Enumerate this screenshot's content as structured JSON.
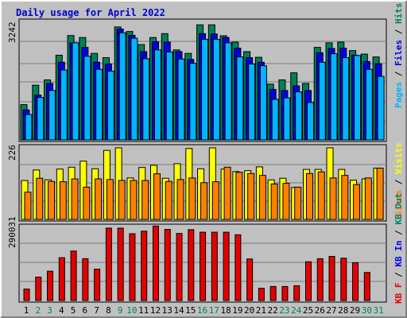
{
  "title": "Daily usage for April 2022",
  "colors": {
    "hits": "#00805a",
    "files": "#0000e6",
    "pages": "#00b4ff",
    "visits": "#ffff00",
    "sites": "#ff8000",
    "kbf": "#e60000",
    "kbin": "#0000ff",
    "kbout": "#00805a",
    "weekday_label": "#000000",
    "weekend_label": "#00805a"
  },
  "chart_data": [
    {
      "type": "bar",
      "title": "Daily usage for April 2022",
      "max_label": "3242",
      "right_label": [
        "Pages",
        "Files",
        "Hits"
      ],
      "ylim": [
        0,
        3242
      ],
      "categories": [
        "1",
        "2",
        "3",
        "4",
        "5",
        "6",
        "7",
        "8",
        "9",
        "10",
        "11",
        "12",
        "13",
        "14",
        "15",
        "16",
        "17",
        "18",
        "19",
        "20",
        "21",
        "22",
        "23",
        "24",
        "25",
        "26",
        "27",
        "28",
        "29",
        "30",
        "31"
      ],
      "series": [
        {
          "name": "Hits",
          "values": [
            1000,
            1550,
            1700,
            2400,
            2955,
            2900,
            2450,
            2330,
            3200,
            3070,
            2700,
            2900,
            3010,
            2550,
            2450,
            3260,
            3260,
            2950,
            2770,
            2500,
            2340,
            1580,
            1700,
            1900,
            1600,
            2620,
            2750,
            2770,
            2530,
            2430,
            2350
          ]
        },
        {
          "name": "Files",
          "values": [
            850,
            1270,
            1600,
            2200,
            2750,
            2620,
            2200,
            2150,
            3140,
            2960,
            2500,
            2780,
            2770,
            2500,
            2280,
            3010,
            3000,
            2900,
            2600,
            2330,
            2200,
            1430,
            1400,
            1530,
            1400,
            2470,
            2590,
            2600,
            2400,
            2220,
            2160
          ]
        },
        {
          "name": "Pages",
          "values": [
            720,
            1200,
            1400,
            1980,
            2750,
            2370,
            2000,
            1950,
            3030,
            2880,
            2300,
            2550,
            2490,
            2290,
            2170,
            2850,
            2850,
            2750,
            2350,
            2150,
            2100,
            1150,
            1190,
            1360,
            1060,
            2200,
            2440,
            2330,
            2390,
            2000,
            1800
          ]
        }
      ]
    },
    {
      "type": "bar",
      "max_label": "226",
      "right_label": [
        "Sites",
        "Visits"
      ],
      "ylim": [
        0,
        226
      ],
      "categories": [
        "1",
        "2",
        "3",
        "4",
        "5",
        "6",
        "7",
        "8",
        "9",
        "10",
        "11",
        "12",
        "13",
        "14",
        "15",
        "16",
        "17",
        "18",
        "19",
        "20",
        "21",
        "22",
        "23",
        "24",
        "25",
        "26",
        "27",
        "28",
        "29",
        "30",
        "31"
      ],
      "series": [
        {
          "name": "Visits",
          "values": [
            123,
            156,
            125,
            159,
            165,
            184,
            160,
            218,
            226,
            131,
            164,
            171,
            130,
            176,
            224,
            160,
            226,
            159,
            151,
            154,
            166,
            125,
            130,
            101,
            158,
            158,
            226,
            158,
            124,
            128,
            162
          ]
        },
        {
          "name": "Sites",
          "values": [
            86,
            130,
            120,
            119,
            128,
            102,
            128,
            126,
            123,
            123,
            123,
            144,
            120,
            126,
            131,
            116,
            119,
            165,
            149,
            145,
            139,
            112,
            114,
            102,
            145,
            150,
            131,
            139,
            110,
            131,
            162
          ]
        }
      ]
    },
    {
      "type": "bar",
      "max_label": "290031",
      "right_label": [
        "KB F",
        "KB In",
        "KB Out"
      ],
      "ylim": [
        0,
        290031
      ],
      "categories": [
        "1",
        "2",
        "3",
        "4",
        "5",
        "6",
        "7",
        "8",
        "9",
        "10",
        "11",
        "12",
        "13",
        "14",
        "15",
        "16",
        "17",
        "18",
        "19",
        "20",
        "21",
        "22",
        "23",
        "24",
        "25",
        "26",
        "27",
        "28",
        "29",
        "30",
        "31"
      ],
      "series": [
        {
          "name": "KB F",
          "values": [
            45000,
            92000,
            115000,
            168000,
            194000,
            164000,
            123000,
            284000,
            284000,
            262000,
            272000,
            292000,
            279000,
            263000,
            278000,
            268000,
            268000,
            268000,
            258000,
            163000,
            48000,
            55000,
            55000,
            58000,
            152000,
            164000,
            173000,
            166000,
            148000,
            110000,
            0
          ]
        }
      ]
    }
  ],
  "days": [
    {
      "label": "1",
      "weekend": false
    },
    {
      "label": "2",
      "weekend": true
    },
    {
      "label": "3",
      "weekend": true
    },
    {
      "label": "4",
      "weekend": false
    },
    {
      "label": "5",
      "weekend": false
    },
    {
      "label": "6",
      "weekend": false
    },
    {
      "label": "7",
      "weekend": false
    },
    {
      "label": "8",
      "weekend": false
    },
    {
      "label": "9",
      "weekend": true
    },
    {
      "label": "10",
      "weekend": true
    },
    {
      "label": "11",
      "weekend": false
    },
    {
      "label": "12",
      "weekend": false
    },
    {
      "label": "13",
      "weekend": false
    },
    {
      "label": "14",
      "weekend": false
    },
    {
      "label": "15",
      "weekend": false
    },
    {
      "label": "16",
      "weekend": true
    },
    {
      "label": "17",
      "weekend": true
    },
    {
      "label": "18",
      "weekend": false
    },
    {
      "label": "19",
      "weekend": false
    },
    {
      "label": "20",
      "weekend": false
    },
    {
      "label": "21",
      "weekend": false
    },
    {
      "label": "22",
      "weekend": false
    },
    {
      "label": "23",
      "weekend": true
    },
    {
      "label": "24",
      "weekend": true
    },
    {
      "label": "25",
      "weekend": false
    },
    {
      "label": "26",
      "weekend": false
    },
    {
      "label": "27",
      "weekend": false
    },
    {
      "label": "28",
      "weekend": false
    },
    {
      "label": "29",
      "weekend": false
    },
    {
      "label": "30",
      "weekend": true
    },
    {
      "label": "31",
      "weekend": true
    }
  ]
}
